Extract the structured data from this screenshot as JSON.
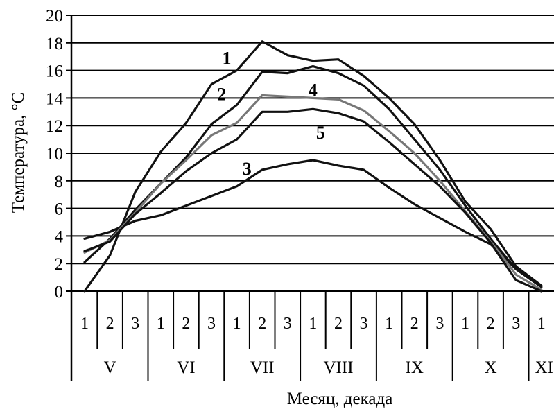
{
  "chart_data": {
    "type": "line",
    "xlabel": "Месяц, декада",
    "ylabel": "Температура, °C",
    "ylim": [
      0,
      20
    ],
    "yticks": [
      "0",
      "2",
      "4",
      "6",
      "8",
      "10",
      "12",
      "14",
      "16",
      "18",
      "20"
    ],
    "grid": "horizontal",
    "decades": [
      "1",
      "2",
      "3",
      "1",
      "2",
      "3",
      "1",
      "2",
      "3",
      "1",
      "2",
      "3",
      "1",
      "2",
      "3",
      "1",
      "2",
      "3",
      "1"
    ],
    "months": [
      "V",
      "VI",
      "VII",
      "VIII",
      "IX",
      "X",
      "XI"
    ],
    "series": [
      {
        "name": "1",
        "color": "#111111",
        "values": [
          0,
          2.6,
          7.2,
          10.1,
          12.2,
          15.0,
          16.0,
          18.1,
          17.1,
          16.7,
          16.8,
          15.6,
          14.0,
          12.1,
          9.5,
          6.5,
          4.5,
          1.8,
          0.4
        ]
      },
      {
        "name": "2",
        "color": "#111111",
        "values": [
          2.1,
          3.8,
          5.9,
          7.8,
          9.7,
          12.1,
          13.5,
          15.9,
          15.8,
          16.3,
          15.8,
          14.9,
          13.2,
          11.0,
          8.8,
          6.2,
          3.8,
          1.6,
          0.3
        ]
      },
      {
        "name": "3",
        "color": "#111111",
        "values": [
          3.8,
          4.3,
          5.1,
          5.5,
          6.2,
          6.9,
          7.6,
          8.8,
          9.2,
          9.5,
          9.1,
          8.8,
          7.5,
          6.3,
          5.3,
          4.3,
          3.4,
          1.6,
          0.3
        ]
      },
      {
        "name": "4",
        "color": "#777777",
        "values": [
          2.8,
          3.7,
          5.7,
          7.8,
          9.5,
          11.3,
          12.2,
          14.2,
          14.1,
          14.0,
          13.9,
          13.1,
          11.6,
          10.0,
          8.0,
          5.8,
          3.6,
          1.2,
          0.1
        ]
      },
      {
        "name": "5",
        "color": "#111111",
        "values": [
          2.9,
          3.6,
          5.6,
          7.1,
          8.7,
          10.0,
          11.0,
          13.0,
          13.0,
          13.2,
          12.9,
          12.3,
          10.8,
          9.2,
          7.6,
          5.7,
          3.5,
          0.8,
          0.0
        ]
      }
    ],
    "series_label_text": [
      "1",
      "2",
      "3",
      "4",
      "5"
    ]
  }
}
